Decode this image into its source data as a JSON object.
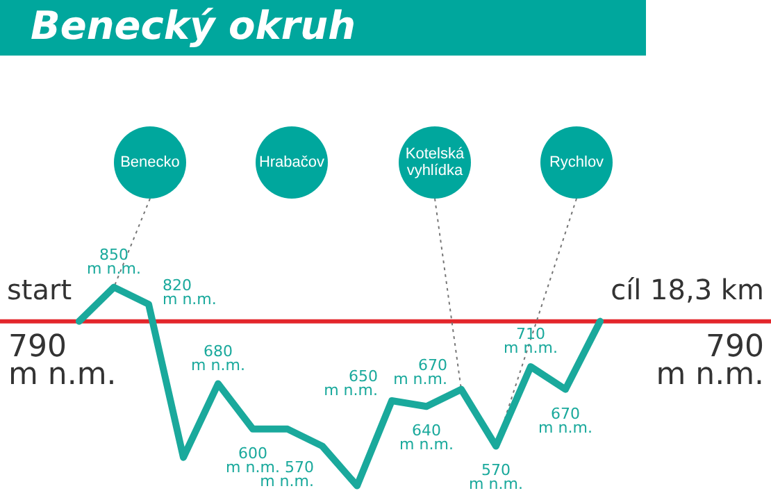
{
  "chart_data": {
    "type": "line",
    "title": "Benecký okruh",
    "tick_labels": false,
    "categories": [
      null,
      null,
      null,
      null,
      null,
      null,
      null,
      null,
      null,
      null,
      null,
      null,
      null,
      null,
      null,
      null
    ],
    "series": [
      {
        "color": "#1aa99c",
        "values": [
          790,
          850,
          820,
          550,
          680,
          600,
          600,
          570,
          500,
          650,
          640,
          670,
          570,
          710,
          670,
          790
        ],
        "value_labels": [
          null,
          "850\nm n.m.",
          "820\nm n.m.",
          null,
          "680\nm n.m.",
          "600\nm n.m.",
          null,
          "570\nm n.m.",
          null,
          "650\nm n.m.",
          "640\nm n.m.",
          "670\nm n.m.",
          "570\nm n.m.",
          "710\nm n.m.",
          "670\nm n.m.",
          null
        ]
      }
    ],
    "ref_lines": [
      {
        "axis": "y",
        "value": 790,
        "label": "790\nm n.m.",
        "color": "#e3262b"
      }
    ],
    "annotations": [
      "Benecko",
      "Hrabačov",
      "Kotelská vyhlídka",
      "Rychlov",
      "start",
      "cíl 18,3 km",
      "790\nm n.m."
    ]
  }
}
